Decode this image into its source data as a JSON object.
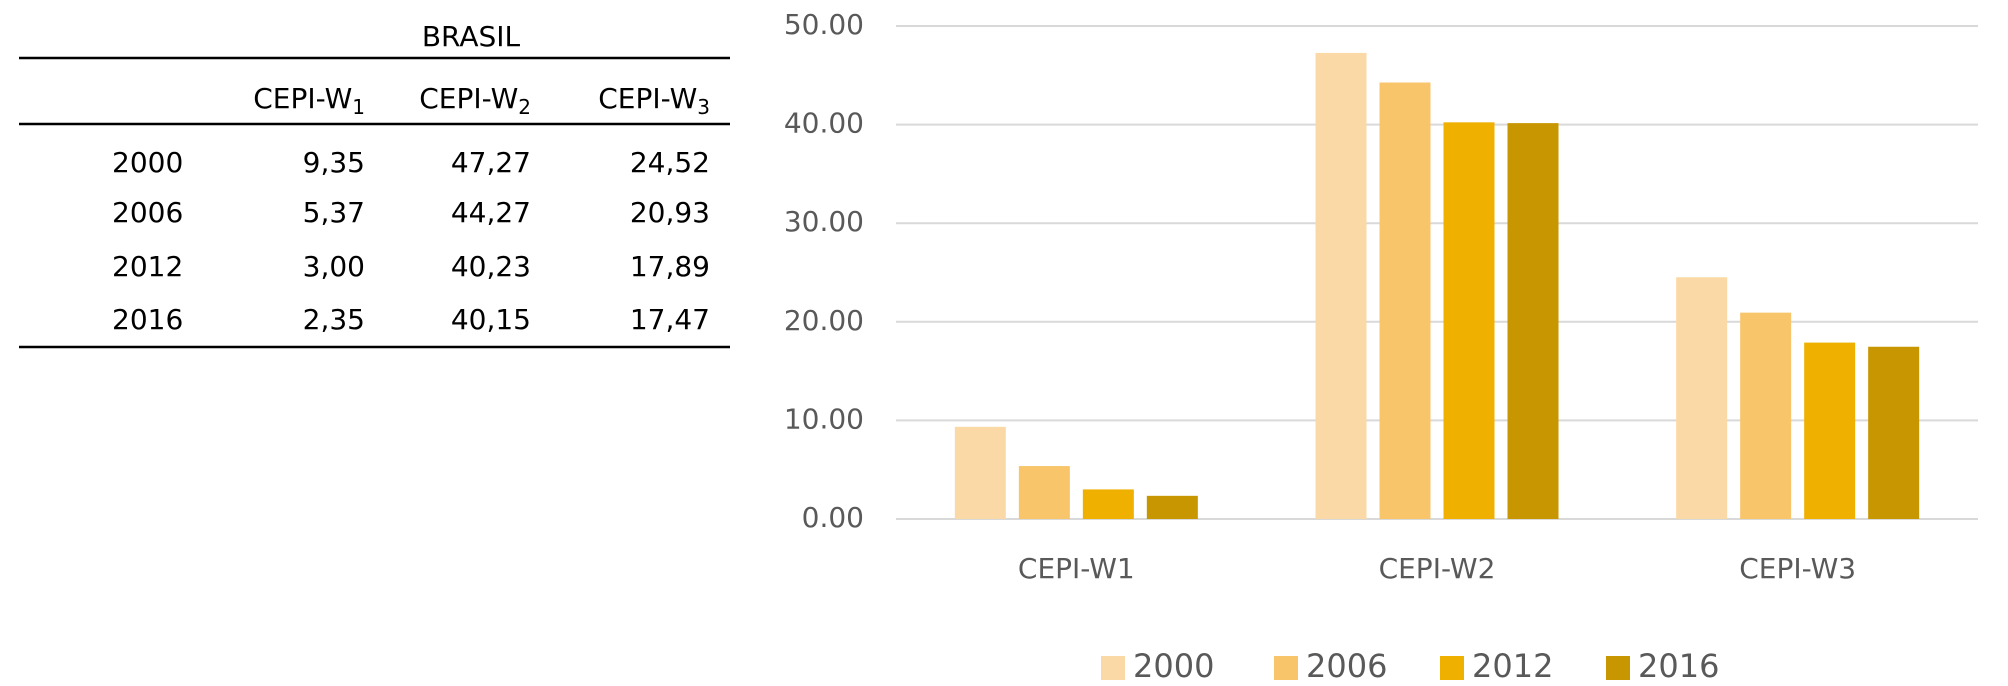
{
  "table": {
    "title": "BRASIL",
    "header": [
      {
        "base": "CEPI-W",
        "sub": "1"
      },
      {
        "base": "CEPI-W",
        "sub": "2"
      },
      {
        "base": "CEPI-W",
        "sub": "3"
      }
    ],
    "rows": [
      [
        "2000",
        "9,35",
        "47,27",
        "24,52"
      ],
      [
        "2006",
        "5,37",
        "44,27",
        "20,93"
      ],
      [
        "2012",
        "3,00",
        "40,23",
        "17,89"
      ],
      [
        "2016",
        "2,35",
        "40,15",
        "17,47"
      ]
    ]
  },
  "chart_data": {
    "type": "bar",
    "categories": [
      "CEPI-W1",
      "CEPI-W2",
      "CEPI-W3"
    ],
    "series": [
      {
        "name": "2000",
        "color": "#fbd9a6",
        "values": [
          9.35,
          47.27,
          24.52
        ]
      },
      {
        "name": "2006",
        "color": "#f9c56a",
        "values": [
          5.37,
          44.27,
          20.93
        ]
      },
      {
        "name": "2012",
        "color": "#f0b000",
        "values": [
          3.0,
          40.23,
          17.89
        ]
      },
      {
        "name": "2016",
        "color": "#c89600",
        "values": [
          2.35,
          40.15,
          17.47
        ]
      }
    ],
    "ylim": [
      0,
      50
    ],
    "yticks": [
      {
        "value": 0,
        "label": "0.00"
      },
      {
        "value": 10,
        "label": "10.00"
      },
      {
        "value": 20,
        "label": "20.00"
      },
      {
        "value": 30,
        "label": "30.00"
      },
      {
        "value": 40,
        "label": "40.00"
      },
      {
        "value": 50,
        "label": "50.00"
      }
    ],
    "grid": true,
    "legend": "bottom"
  }
}
